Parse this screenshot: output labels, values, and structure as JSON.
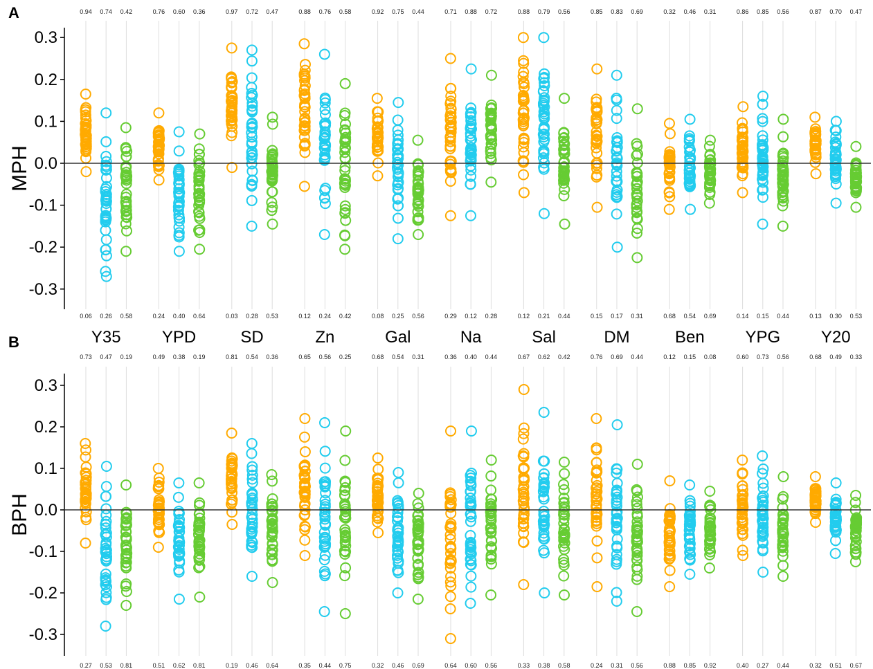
{
  "chart_data": {
    "type": "scatter",
    "colors": {
      "orange": "#FFAA00",
      "cyan": "#22CCEE",
      "green": "#66CC33"
    },
    "categories": [
      "Y35",
      "YPD",
      "SD",
      "Zn",
      "Gal",
      "Na",
      "Sal",
      "DM",
      "Ben",
      "YPG",
      "Y20"
    ],
    "yticks": [
      0.3,
      0.2,
      0.1,
      0.0,
      -0.1,
      -0.2,
      -0.3
    ],
    "yticklabels": [
      "0.3",
      "0.2",
      "0.1",
      "0.0",
      "-0.1",
      "-0.2",
      "-0.3"
    ],
    "ylim": [
      -0.35,
      0.35
    ],
    "grid": "vertical lines at each series",
    "panels": [
      {
        "letter": "A",
        "ylabel": "MPH",
        "top_annotations": [
          [
            "0.94",
            "0.74",
            "0.42"
          ],
          [
            "0.76",
            "0.60",
            "0.36"
          ],
          [
            "0.97",
            "0.72",
            "0.47"
          ],
          [
            "0.88",
            "0.76",
            "0.58"
          ],
          [
            "0.92",
            "0.75",
            "0.44"
          ],
          [
            "0.71",
            "0.88",
            "0.72"
          ],
          [
            "0.88",
            "0.79",
            "0.56"
          ],
          [
            "0.85",
            "0.83",
            "0.69"
          ],
          [
            "0.32",
            "0.46",
            "0.31"
          ],
          [
            "0.86",
            "0.85",
            "0.56"
          ],
          [
            "0.87",
            "0.70",
            "0.47"
          ]
        ],
        "bottom_annotations": [
          [
            "0.06",
            "0.26",
            "0.58"
          ],
          [
            "0.24",
            "0.40",
            "0.64"
          ],
          [
            "0.03",
            "0.28",
            "0.53"
          ],
          [
            "0.12",
            "0.24",
            "0.42"
          ],
          [
            "0.08",
            "0.25",
            "0.56"
          ],
          [
            "0.29",
            "0.12",
            "0.28"
          ],
          [
            "0.12",
            "0.21",
            "0.44"
          ],
          [
            "0.15",
            "0.17",
            "0.31"
          ],
          [
            "0.68",
            "0.54",
            "0.69"
          ],
          [
            "0.14",
            "0.15",
            "0.44"
          ],
          [
            "0.13",
            "0.30",
            "0.53"
          ]
        ],
        "ranges": [
          [
            [
              -0.02,
              0.165
            ],
            [
              -0.27,
              0.12
            ],
            [
              -0.21,
              0.085
            ]
          ],
          [
            [
              -0.04,
              0.12
            ],
            [
              -0.21,
              0.075
            ],
            [
              -0.205,
              0.07
            ]
          ],
          [
            [
              -0.01,
              0.275
            ],
            [
              -0.15,
              0.27
            ],
            [
              -0.145,
              0.11
            ]
          ],
          [
            [
              -0.055,
              0.285
            ],
            [
              -0.17,
              0.26
            ],
            [
              -0.205,
              0.19
            ]
          ],
          [
            [
              -0.03,
              0.155
            ],
            [
              -0.18,
              0.145
            ],
            [
              -0.17,
              0.055
            ]
          ],
          [
            [
              -0.125,
              0.25
            ],
            [
              -0.125,
              0.225
            ],
            [
              -0.045,
              0.21
            ]
          ],
          [
            [
              -0.07,
              0.3
            ],
            [
              -0.12,
              0.3
            ],
            [
              -0.145,
              0.155
            ]
          ],
          [
            [
              -0.105,
              0.225
            ],
            [
              -0.2,
              0.21
            ],
            [
              -0.225,
              0.13
            ]
          ],
          [
            [
              -0.11,
              0.095
            ],
            [
              -0.11,
              0.105
            ],
            [
              -0.095,
              0.055
            ]
          ],
          [
            [
              -0.07,
              0.135
            ],
            [
              -0.145,
              0.16
            ],
            [
              -0.15,
              0.105
            ]
          ],
          [
            [
              -0.025,
              0.11
            ],
            [
              -0.095,
              0.1
            ],
            [
              -0.105,
              0.04
            ]
          ]
        ]
      },
      {
        "letter": "B",
        "ylabel": "BPH",
        "top_annotations": [
          [
            "0.73",
            "0.47",
            "0.19"
          ],
          [
            "0.49",
            "0.38",
            "0.19"
          ],
          [
            "0.81",
            "0.54",
            "0.36"
          ],
          [
            "0.65",
            "0.56",
            "0.25"
          ],
          [
            "0.68",
            "0.54",
            "0.31"
          ],
          [
            "0.36",
            "0.40",
            "0.44"
          ],
          [
            "0.67",
            "0.62",
            "0.42"
          ],
          [
            "0.76",
            "0.69",
            "0.44"
          ],
          [
            "0.12",
            "0.15",
            "0.08"
          ],
          [
            "0.60",
            "0.73",
            "0.56"
          ],
          [
            "0.68",
            "0.49",
            "0.33"
          ]
        ],
        "bottom_annotations": [
          [
            "0.27",
            "0.53",
            "0.81"
          ],
          [
            "0.51",
            "0.62",
            "0.81"
          ],
          [
            "0.19",
            "0.46",
            "0.64"
          ],
          [
            "0.35",
            "0.44",
            "0.75"
          ],
          [
            "0.32",
            "0.46",
            "0.69"
          ],
          [
            "0.64",
            "0.60",
            "0.56"
          ],
          [
            "0.33",
            "0.38",
            "0.58"
          ],
          [
            "0.24",
            "0.31",
            "0.56"
          ],
          [
            "0.88",
            "0.85",
            "0.92"
          ],
          [
            "0.40",
            "0.27",
            "0.44"
          ],
          [
            "0.32",
            "0.51",
            "0.67"
          ]
        ],
        "ranges": [
          [
            [
              -0.08,
              0.16
            ],
            [
              -0.28,
              0.105
            ],
            [
              -0.23,
              0.06
            ]
          ],
          [
            [
              -0.09,
              0.1
            ],
            [
              -0.215,
              0.065
            ],
            [
              -0.21,
              0.065
            ]
          ],
          [
            [
              -0.035,
              0.185
            ],
            [
              -0.16,
              0.16
            ],
            [
              -0.175,
              0.085
            ]
          ],
          [
            [
              -0.11,
              0.22
            ],
            [
              -0.245,
              0.21
            ],
            [
              -0.25,
              0.19
            ]
          ],
          [
            [
              -0.055,
              0.125
            ],
            [
              -0.2,
              0.09
            ],
            [
              -0.215,
              0.04
            ]
          ],
          [
            [
              -0.31,
              0.19
            ],
            [
              -0.225,
              0.19
            ],
            [
              -0.205,
              0.12
            ]
          ],
          [
            [
              -0.18,
              0.29
            ],
            [
              -0.2,
              0.235
            ],
            [
              -0.205,
              0.115
            ]
          ],
          [
            [
              -0.185,
              0.22
            ],
            [
              -0.22,
              0.205
            ],
            [
              -0.245,
              0.11
            ]
          ],
          [
            [
              -0.185,
              0.07
            ],
            [
              -0.155,
              0.06
            ],
            [
              -0.14,
              0.045
            ]
          ],
          [
            [
              -0.11,
              0.12
            ],
            [
              -0.15,
              0.13
            ],
            [
              -0.16,
              0.08
            ]
          ],
          [
            [
              -0.03,
              0.08
            ],
            [
              -0.105,
              0.065
            ],
            [
              -0.125,
              0.035
            ]
          ]
        ]
      }
    ]
  }
}
